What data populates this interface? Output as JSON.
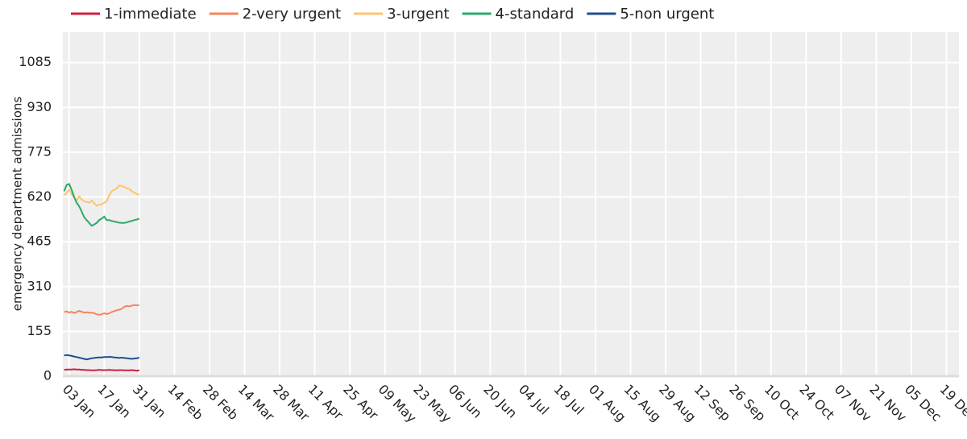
{
  "chart_data": {
    "type": "line",
    "y_label": "emergency department admissions",
    "x": [
      1,
      2,
      3,
      4,
      5,
      6,
      7,
      8,
      9,
      10,
      11,
      12,
      13,
      14,
      15,
      16,
      17,
      18,
      19,
      20,
      21,
      22,
      23,
      24,
      25,
      26,
      27,
      28,
      29,
      30,
      31
    ],
    "xlim": [
      0.5,
      358
    ],
    "xticks": [
      {
        "value": 3,
        "label": "03 Jan"
      },
      {
        "value": 17,
        "label": "17 Jan"
      },
      {
        "value": 31,
        "label": "31 Jan"
      },
      {
        "value": 45,
        "label": "14 Feb"
      },
      {
        "value": 59,
        "label": "28 Feb"
      },
      {
        "value": 73,
        "label": "14 Mar"
      },
      {
        "value": 87,
        "label": "28 Mar"
      },
      {
        "value": 101,
        "label": "11 Apr"
      },
      {
        "value": 115,
        "label": "25 Apr"
      },
      {
        "value": 129,
        "label": "09 May"
      },
      {
        "value": 143,
        "label": "23 May"
      },
      {
        "value": 157,
        "label": "06 Jun"
      },
      {
        "value": 171,
        "label": "20 Jun"
      },
      {
        "value": 185,
        "label": "04 Jul"
      },
      {
        "value": 199,
        "label": "18 Jul"
      },
      {
        "value": 213,
        "label": "01 Aug"
      },
      {
        "value": 227,
        "label": "15 Aug"
      },
      {
        "value": 241,
        "label": "29 Aug"
      },
      {
        "value": 255,
        "label": "12 Sep"
      },
      {
        "value": 269,
        "label": "26 Sep"
      },
      {
        "value": 283,
        "label": "10 Oct"
      },
      {
        "value": 297,
        "label": "24 Oct"
      },
      {
        "value": 311,
        "label": "07 Nov"
      },
      {
        "value": 325,
        "label": "21 Nov"
      },
      {
        "value": 339,
        "label": "05 Dec"
      },
      {
        "value": 353,
        "label": "19 Dec"
      }
    ],
    "ylim": [
      0,
      1190
    ],
    "yticks": [
      0,
      155,
      310,
      465,
      620,
      775,
      930,
      1085
    ],
    "grid": true,
    "legend": "top",
    "series": [
      {
        "name": "1-immediate",
        "color": "#cf1f3f",
        "values": [
          22,
          23,
          23,
          23,
          24,
          23,
          23,
          22,
          22,
          21,
          21,
          20,
          20,
          21,
          22,
          21,
          21,
          21,
          22,
          21,
          21,
          20,
          21,
          21,
          20,
          20,
          20,
          21,
          20,
          19,
          20
        ]
      },
      {
        "name": "2-very urgent",
        "color": "#f4855f",
        "values": [
          222,
          224,
          220,
          223,
          218,
          222,
          226,
          223,
          220,
          221,
          219,
          220,
          218,
          214,
          212,
          214,
          218,
          215,
          217,
          222,
          225,
          228,
          230,
          233,
          240,
          243,
          241,
          244,
          246,
          245,
          246
        ]
      },
      {
        "name": "3-urgent",
        "color": "#fdc46e",
        "values": [
          625,
          635,
          645,
          630,
          618,
          608,
          622,
          612,
          605,
          603,
          600,
          608,
          598,
          590,
          593,
          595,
          600,
          605,
          625,
          640,
          645,
          650,
          660,
          658,
          655,
          650,
          648,
          640,
          635,
          630,
          628
        ]
      },
      {
        "name": "4-standard",
        "color": "#2ca86a",
        "values": [
          640,
          662,
          665,
          645,
          620,
          600,
          588,
          570,
          550,
          540,
          530,
          520,
          525,
          530,
          540,
          545,
          552,
          540,
          540,
          537,
          535,
          533,
          531,
          530,
          530,
          532,
          535,
          537,
          540,
          542,
          545
        ]
      },
      {
        "name": "5-non urgent",
        "color": "#1f4e8c",
        "values": [
          72,
          73,
          72,
          70,
          68,
          66,
          64,
          62,
          60,
          58,
          60,
          62,
          63,
          64,
          65,
          65,
          66,
          66,
          67,
          66,
          65,
          64,
          63,
          64,
          63,
          62,
          61,
          60,
          61,
          62,
          64
        ]
      }
    ]
  }
}
